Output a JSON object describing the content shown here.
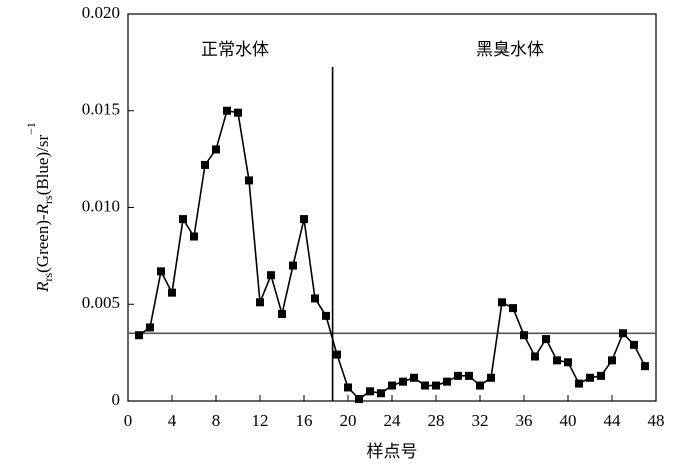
{
  "chart_data": {
    "type": "line",
    "xlabel": "样点号",
    "ylabel_parts": [
      "R",
      "rs",
      "(Green)-",
      "R",
      "rs",
      "(Blue)/sr",
      "−1"
    ],
    "annotations": [
      "正常水体",
      "黑臭水体"
    ],
    "x": [
      1,
      2,
      3,
      4,
      5,
      6,
      7,
      8,
      9,
      10,
      11,
      12,
      13,
      14,
      15,
      16,
      17,
      18,
      19,
      20,
      21,
      22,
      23,
      24,
      25,
      26,
      27,
      28,
      29,
      30,
      31,
      32,
      33,
      34,
      35,
      36,
      37,
      38,
      39,
      40,
      41,
      42,
      43,
      44,
      45,
      46,
      47
    ],
    "series": [
      {
        "color": "#000000",
        "values": [
          0.0034,
          0.0038,
          0.0067,
          0.0056,
          0.0094,
          0.0085,
          0.0122,
          0.013,
          0.015,
          0.0149,
          0.0114,
          0.0051,
          0.0065,
          0.0045,
          0.007,
          0.0094,
          0.0053,
          0.0044,
          0.0024,
          0.0007,
          0.0001,
          0.0005,
          0.0004,
          0.0008,
          0.001,
          0.0012,
          0.0008,
          0.0008,
          0.001,
          0.0013,
          0.0013,
          0.0008,
          0.0012,
          0.0051,
          0.0048,
          0.0034,
          0.0023,
          0.0032,
          0.0021,
          0.002,
          0.0009,
          0.0012,
          0.0013,
          0.0021,
          0.0035,
          0.0029,
          0.0018
        ]
      }
    ],
    "reference_lines": {
      "y": 0.0035,
      "x": 18.6,
      "color": "#555555"
    },
    "xlim": [
      0,
      48
    ],
    "xticks": [
      0,
      4,
      8,
      12,
      16,
      20,
      24,
      28,
      32,
      36,
      40,
      44,
      48
    ],
    "ylim": [
      0,
      0.02
    ],
    "yticks": [
      0,
      0.005,
      {
        "value": 0.01,
        "label": "0.010"
      },
      0.015,
      {
        "value": 0.02,
        "label": "0.020"
      }
    ]
  }
}
